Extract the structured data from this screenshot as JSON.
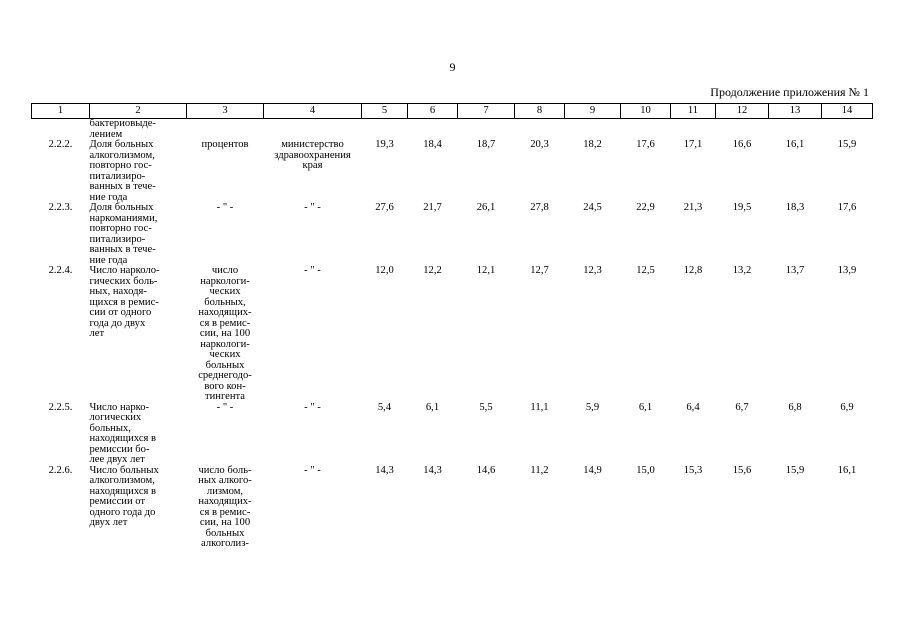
{
  "page_number": "9",
  "continuation": "Продолжение приложения № 1",
  "header": [
    "1",
    "2",
    "3",
    "4",
    "5",
    "6",
    "7",
    "8",
    "9",
    "10",
    "11",
    "12",
    "13",
    "14"
  ],
  "fragment": "бактериовыде-\nлением",
  "rows": [
    {
      "code": "2.2.2.",
      "name": "Доля больных\nалкоголизмом,\nповторно гос-\nпитализиро-\nванных в тече-\nние года",
      "unit": "процентов",
      "org": "министерство\nздравоохранения\nкрая",
      "values": [
        "19,3",
        "18,4",
        "18,7",
        "20,3",
        "18,2",
        "17,6",
        "17,1",
        "16,6",
        "16,1",
        "15,9"
      ]
    },
    {
      "code": "2.2.3.",
      "name": "Доля больных\nнаркоманиями,\nповторно гос-\nпитализиро-\nванных в тече-\nние года",
      "unit": "- \" -",
      "org": "- \" -",
      "values": [
        "27,6",
        "21,7",
        "26,1",
        "27,8",
        "24,5",
        "22,9",
        "21,3",
        "19,5",
        "18,3",
        "17,6"
      ]
    },
    {
      "code": "2.2.4.",
      "name": "Число нарколо-\nгических боль-\nных, находя-\nщихся в ремис-\nсии от одного\nгода до двух\nлет",
      "unit": "число\nнаркологи-\nческих\nбольных,\nнаходящих-\nся в ремис-\nсии, на 100\nнаркологи-\nческих\nбольных\nсреднегодо-\nвого кон-\nтингента",
      "org": "- \" -",
      "values": [
        "12,0",
        "12,2",
        "12,1",
        "12,7",
        "12,3",
        "12,5",
        "12,8",
        "13,2",
        "13,7",
        "13,9"
      ]
    },
    {
      "code": "2.2.5.",
      "name": "Число нарко-\nлогических\nбольных,\nнаходящихся в\nремиссии бо-\nлее двух лет",
      "unit": "- \" -",
      "org": "- \" -",
      "values": [
        "5,4",
        "6,1",
        "5,5",
        "11,1",
        "5,9",
        "6,1",
        "6,4",
        "6,7",
        "6,8",
        "6,9"
      ]
    },
    {
      "code": "2.2.6.",
      "name": "Число больных\nалкоголизмом,\nнаходящихся в\nремиссии от\nодного года до\nдвух лет",
      "unit": "число боль-\nных алкого-\nлизмом,\nнаходящих-\nся в ремис-\nсии, на 100\nбольных\nалкоголиз-",
      "org": "- \" -",
      "values": [
        "14,3",
        "14,3",
        "14,6",
        "11,2",
        "14,9",
        "15,0",
        "15,3",
        "15,6",
        "15,9",
        "16,1"
      ]
    }
  ]
}
